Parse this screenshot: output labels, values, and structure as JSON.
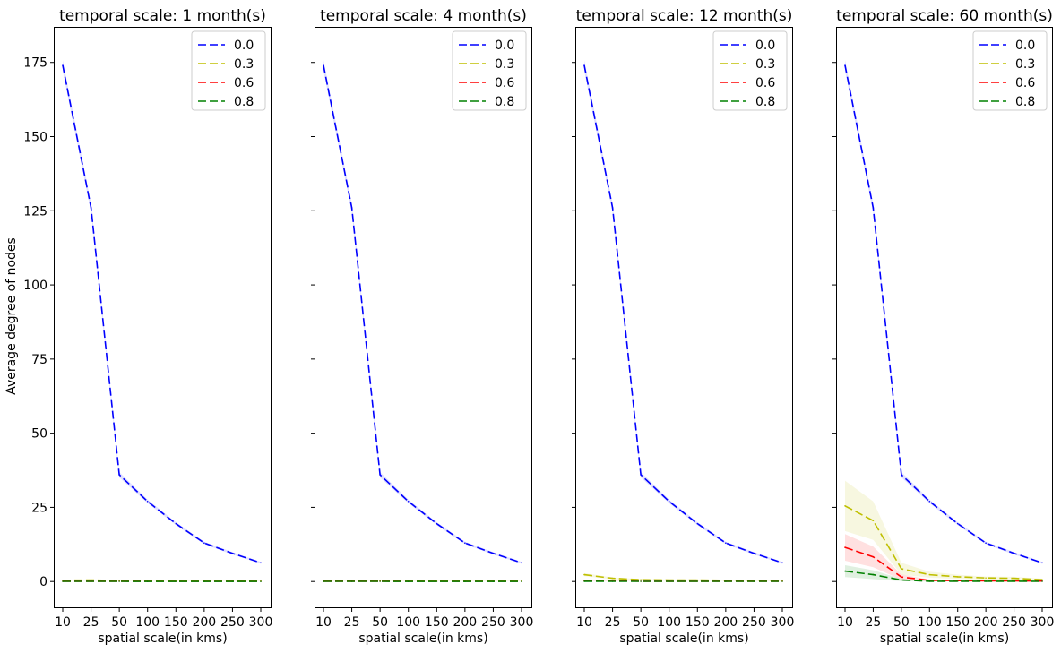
{
  "figure": {
    "ylabel": "Average degree of nodes",
    "xlabel": "spatial scale(in kms)"
  },
  "chart_data": [
    {
      "type": "line",
      "title": "temporal scale: 1 month(s)",
      "xlabel": "spatial scale(in kms)",
      "ylabel": "Average degree of nodes",
      "x": [
        10,
        25,
        50,
        100,
        150,
        200,
        250,
        300
      ],
      "xticks": [
        "10",
        "25",
        "50",
        "100",
        "150",
        "200",
        "250",
        "300"
      ],
      "ylim": [
        -9,
        187
      ],
      "yticks": [
        0,
        25,
        50,
        75,
        100,
        125,
        150,
        175
      ],
      "legend": "top-right",
      "series": [
        {
          "name": "0.0",
          "color": "#0000ff",
          "values": [
            174,
            126,
            36,
            27,
            19.5,
            13,
            9.5,
            6.3
          ],
          "band": [
            1.8,
            1.5,
            0.9,
            0.6,
            0.5,
            0.4,
            0.4,
            0.3
          ]
        },
        {
          "name": "0.3",
          "color": "#bfbf00",
          "values": [
            0.4,
            0.5,
            0.3,
            0.3,
            0.3,
            0.2,
            0.2,
            0.2
          ],
          "band": [
            0.2,
            0.2,
            0.1,
            0.1,
            0.1,
            0.1,
            0.1,
            0.1
          ]
        },
        {
          "name": "0.6",
          "color": "#ff0000",
          "values": [
            0.1,
            0.1,
            0.1,
            0.05,
            0.05,
            0.05,
            0.05,
            0.05
          ],
          "band": [
            0,
            0,
            0,
            0,
            0,
            0,
            0,
            0
          ]
        },
        {
          "name": "0.8",
          "color": "#008000",
          "values": [
            0.05,
            0.05,
            0.05,
            0.02,
            0.02,
            0.02,
            0.02,
            0.02
          ],
          "band": [
            0,
            0,
            0,
            0,
            0,
            0,
            0,
            0
          ]
        }
      ]
    },
    {
      "type": "line",
      "title": "temporal scale: 4 month(s)",
      "xlabel": "spatial scale(in kms)",
      "x": [
        10,
        25,
        50,
        100,
        150,
        200,
        250,
        300
      ],
      "xticks": [
        "10",
        "25",
        "50",
        "100",
        "150",
        "200",
        "250",
        "300"
      ],
      "ylim": [
        -9,
        187
      ],
      "legend": "top-right",
      "series": [
        {
          "name": "0.0",
          "color": "#0000ff",
          "values": [
            174,
            126,
            36,
            27,
            19.5,
            13,
            9.5,
            6.3
          ],
          "band": [
            1.8,
            1.5,
            0.9,
            0.6,
            0.5,
            0.4,
            0.4,
            0.3
          ]
        },
        {
          "name": "0.3",
          "color": "#bfbf00",
          "values": [
            0.3,
            0.4,
            0.3,
            0.2,
            0.2,
            0.2,
            0.2,
            0.2
          ],
          "band": [
            0.2,
            0.2,
            0.1,
            0.1,
            0.1,
            0.1,
            0.1,
            0.1
          ]
        },
        {
          "name": "0.6",
          "color": "#ff0000",
          "values": [
            0.1,
            0.1,
            0.1,
            0.05,
            0.05,
            0.05,
            0.05,
            0.05
          ],
          "band": [
            0,
            0,
            0,
            0,
            0,
            0,
            0,
            0
          ]
        },
        {
          "name": "0.8",
          "color": "#008000",
          "values": [
            0.05,
            0.05,
            0.05,
            0.02,
            0.02,
            0.02,
            0.02,
            0.02
          ],
          "band": [
            0,
            0,
            0,
            0,
            0,
            0,
            0,
            0
          ]
        }
      ]
    },
    {
      "type": "line",
      "title": "temporal scale: 12 month(s)",
      "xlabel": "spatial scale(in kms)",
      "x": [
        10,
        25,
        50,
        100,
        150,
        200,
        250,
        300
      ],
      "xticks": [
        "10",
        "25",
        "50",
        "100",
        "150",
        "200",
        "250",
        "300"
      ],
      "ylim": [
        -9,
        187
      ],
      "legend": "top-right",
      "series": [
        {
          "name": "0.0",
          "color": "#0000ff",
          "values": [
            174,
            126,
            36,
            27,
            19.5,
            13,
            9.5,
            6.3
          ],
          "band": [
            1.8,
            1.5,
            0.9,
            0.6,
            0.5,
            0.4,
            0.4,
            0.3
          ]
        },
        {
          "name": "0.3",
          "color": "#bfbf00",
          "values": [
            2.3,
            1.1,
            0.6,
            0.5,
            0.5,
            0.4,
            0.4,
            0.3
          ],
          "band": [
            0.5,
            0.3,
            0.2,
            0.2,
            0.2,
            0.2,
            0.2,
            0.2
          ]
        },
        {
          "name": "0.6",
          "color": "#ff0000",
          "values": [
            0.3,
            0.2,
            0.1,
            0.1,
            0.1,
            0.1,
            0.1,
            0.1
          ],
          "band": [
            0.1,
            0.1,
            0,
            0,
            0,
            0,
            0,
            0
          ]
        },
        {
          "name": "0.8",
          "color": "#008000",
          "values": [
            0.1,
            0.05,
            0.05,
            0.05,
            0.05,
            0.05,
            0.05,
            0.05
          ],
          "band": [
            0,
            0,
            0,
            0,
            0,
            0,
            0,
            0
          ]
        }
      ]
    },
    {
      "type": "line",
      "title": "temporal scale: 60 month(s)",
      "xlabel": "spatial scale(in kms)",
      "x": [
        10,
        25,
        50,
        100,
        150,
        200,
        250,
        300
      ],
      "xticks": [
        "10",
        "25",
        "50",
        "100",
        "150",
        "200",
        "250",
        "300"
      ],
      "ylim": [
        -9,
        187
      ],
      "legend": "top-right",
      "series": [
        {
          "name": "0.0",
          "color": "#0000ff",
          "values": [
            174,
            126,
            36,
            27,
            19.5,
            13,
            9.5,
            6.3
          ],
          "band": [
            1.8,
            1.5,
            0.9,
            0.6,
            0.5,
            0.4,
            0.4,
            0.3
          ]
        },
        {
          "name": "0.3",
          "color": "#bfbf00",
          "values": [
            25.5,
            20.5,
            4.3,
            2.3,
            1.6,
            1.2,
            1.1,
            0.6
          ],
          "band": [
            8.5,
            6.5,
            2.0,
            1.0,
            0.7,
            0.5,
            0.5,
            0.4
          ]
        },
        {
          "name": "0.6",
          "color": "#ff0000",
          "values": [
            11.5,
            8.3,
            1.5,
            0.4,
            0.3,
            0.25,
            0.2,
            0.15
          ],
          "band": [
            4.5,
            3.5,
            0.9,
            0.3,
            0.2,
            0.2,
            0.15,
            0.1
          ]
        },
        {
          "name": "0.8",
          "color": "#008000",
          "values": [
            3.5,
            2.3,
            0.5,
            0.1,
            0.1,
            0.1,
            0.1,
            0.05
          ],
          "band": [
            2.0,
            1.5,
            0.4,
            0.1,
            0.05,
            0.05,
            0.05,
            0.05
          ]
        }
      ]
    }
  ]
}
